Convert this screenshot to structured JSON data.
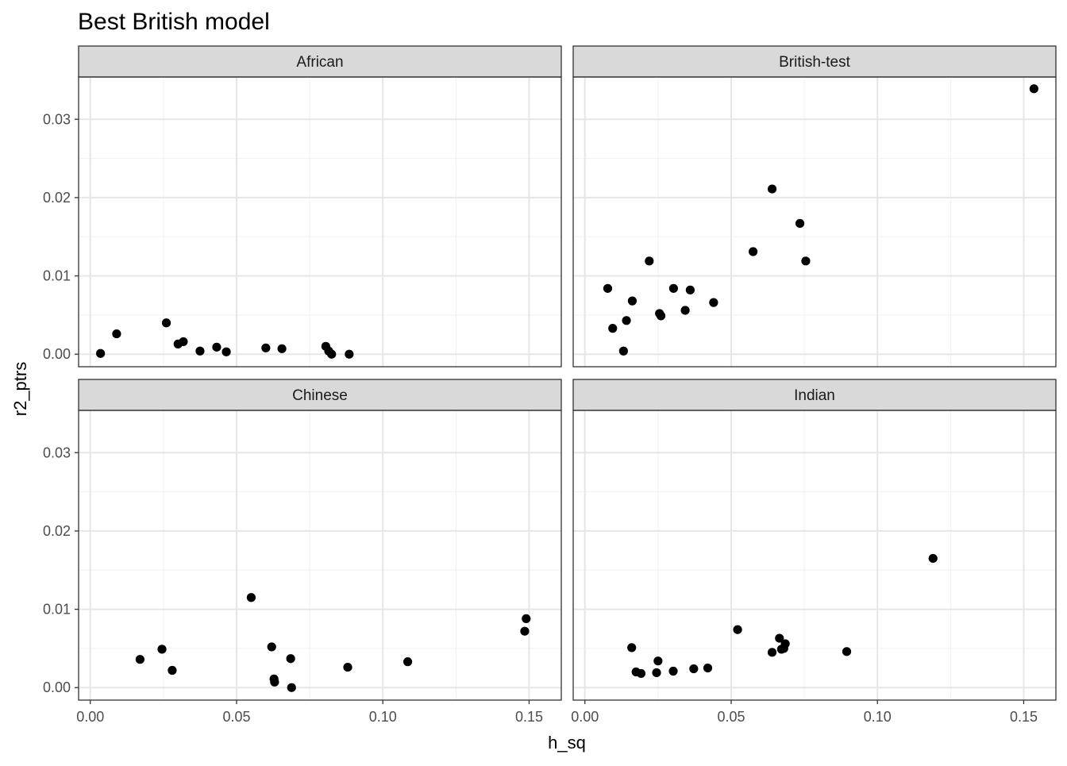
{
  "chart_data": {
    "type": "scatter",
    "title": "Best British model",
    "xlabel": "h_sq",
    "ylabel": "r2_ptrs",
    "xlim": [
      -0.004,
      0.161
    ],
    "ylim": [
      -0.0016,
      0.0354
    ],
    "x_ticks": [
      0.0,
      0.05,
      0.1,
      0.15
    ],
    "x_tick_labels": [
      "0.00",
      "0.05",
      "0.10",
      "0.15"
    ],
    "y_ticks": [
      0.0,
      0.01,
      0.02,
      0.03
    ],
    "y_tick_labels": [
      "0.00",
      "0.01",
      "0.02",
      "0.03"
    ],
    "grid": true,
    "facets": [
      {
        "label": "African",
        "points": [
          {
            "x": 0.0035,
            "y": 0.0001
          },
          {
            "x": 0.009,
            "y": 0.0026
          },
          {
            "x": 0.026,
            "y": 0.004
          },
          {
            "x": 0.03,
            "y": 0.0013
          },
          {
            "x": 0.0318,
            "y": 0.0016
          },
          {
            "x": 0.0375,
            "y": 0.0004
          },
          {
            "x": 0.0432,
            "y": 0.0009
          },
          {
            "x": 0.0465,
            "y": 0.0003
          },
          {
            "x": 0.06,
            "y": 0.0008
          },
          {
            "x": 0.0655,
            "y": 0.0007
          },
          {
            "x": 0.0805,
            "y": 0.001
          },
          {
            "x": 0.0815,
            "y": 0.0004
          },
          {
            "x": 0.0825,
            "y": 0.0
          },
          {
            "x": 0.0885,
            "y": 0.0
          }
        ]
      },
      {
        "label": "British-test",
        "points": [
          {
            "x": 0.0078,
            "y": 0.0084
          },
          {
            "x": 0.0095,
            "y": 0.0033
          },
          {
            "x": 0.0132,
            "y": 0.0004
          },
          {
            "x": 0.0142,
            "y": 0.0043
          },
          {
            "x": 0.0162,
            "y": 0.0068
          },
          {
            "x": 0.022,
            "y": 0.0119
          },
          {
            "x": 0.0255,
            "y": 0.0052
          },
          {
            "x": 0.026,
            "y": 0.0049
          },
          {
            "x": 0.0303,
            "y": 0.0084
          },
          {
            "x": 0.0343,
            "y": 0.0056
          },
          {
            "x": 0.036,
            "y": 0.0082
          },
          {
            "x": 0.044,
            "y": 0.0066
          },
          {
            "x": 0.0575,
            "y": 0.0131
          },
          {
            "x": 0.064,
            "y": 0.0211
          },
          {
            "x": 0.0735,
            "y": 0.0167
          },
          {
            "x": 0.0755,
            "y": 0.0119
          },
          {
            "x": 0.1535,
            "y": 0.0339
          }
        ]
      },
      {
        "label": "Chinese",
        "points": [
          {
            "x": 0.017,
            "y": 0.0036
          },
          {
            "x": 0.0245,
            "y": 0.0049
          },
          {
            "x": 0.028,
            "y": 0.0022
          },
          {
            "x": 0.055,
            "y": 0.0115
          },
          {
            "x": 0.062,
            "y": 0.0052
          },
          {
            "x": 0.0628,
            "y": 0.0011
          },
          {
            "x": 0.063,
            "y": 0.0007
          },
          {
            "x": 0.0685,
            "y": 0.0037
          },
          {
            "x": 0.0688,
            "y": 0.0
          },
          {
            "x": 0.088,
            "y": 0.0026
          },
          {
            "x": 0.1085,
            "y": 0.0033
          },
          {
            "x": 0.1485,
            "y": 0.0072
          },
          {
            "x": 0.149,
            "y": 0.0088
          }
        ]
      },
      {
        "label": "Indian",
        "points": [
          {
            "x": 0.016,
            "y": 0.0051
          },
          {
            "x": 0.0175,
            "y": 0.002
          },
          {
            "x": 0.0192,
            "y": 0.0018
          },
          {
            "x": 0.0245,
            "y": 0.0019
          },
          {
            "x": 0.025,
            "y": 0.0034
          },
          {
            "x": 0.0302,
            "y": 0.0021
          },
          {
            "x": 0.0372,
            "y": 0.0024
          },
          {
            "x": 0.042,
            "y": 0.0025
          },
          {
            "x": 0.0522,
            "y": 0.0074
          },
          {
            "x": 0.064,
            "y": 0.0045
          },
          {
            "x": 0.0665,
            "y": 0.0063
          },
          {
            "x": 0.0672,
            "y": 0.0049
          },
          {
            "x": 0.068,
            "y": 0.005
          },
          {
            "x": 0.0685,
            "y": 0.0056
          },
          {
            "x": 0.0895,
            "y": 0.0046
          },
          {
            "x": 0.119,
            "y": 0.0165
          }
        ]
      }
    ]
  }
}
